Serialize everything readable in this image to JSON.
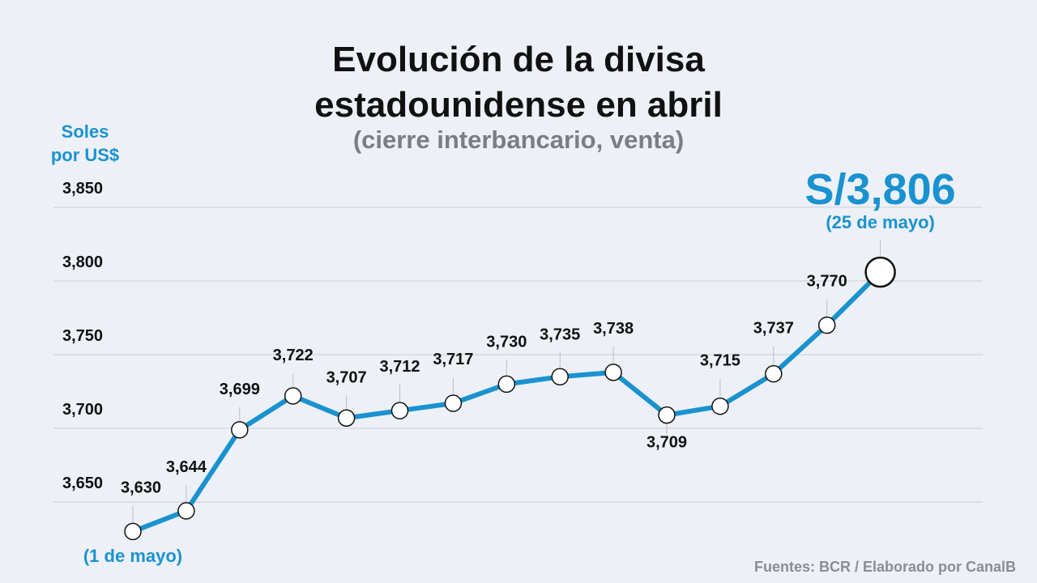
{
  "title_line1": "Evolución de la divisa",
  "title_line2": "estadounidense en abril",
  "subtitle": "(cierre interbancario, venta)",
  "ylabel_line1": "Soles",
  "ylabel_line2": "por US$",
  "source": "Fuentes: BCR / Elaborado por CanalB",
  "highlight_value": "S/3,806",
  "highlight_date": "(25 de mayo)",
  "start_date": "(1 de mayo)",
  "colors": {
    "background": "#edf1f7",
    "line": "#1a92d0",
    "accent": "#1a92d0",
    "grid": "#c9cdd4",
    "text": "#111111",
    "subtitle": "#7a7d82"
  },
  "chart_data": {
    "type": "line",
    "title": "Evolución de la divisa estadounidense en abril",
    "subtitle": "(cierre interbancario, venta)",
    "ylabel": "Soles por US$",
    "ylim": [
      3.61,
      3.86
    ],
    "yticks": [
      3.65,
      3.7,
      3.75,
      3.8,
      3.85
    ],
    "ytick_labels": [
      "3,650",
      "3,700",
      "3,750",
      "3,800",
      "3,850"
    ],
    "grid": true,
    "series": [
      {
        "values": [
          3.63,
          3.644,
          3.699,
          3.722,
          3.707,
          3.712,
          3.717,
          3.73,
          3.735,
          3.738,
          3.709,
          3.715,
          3.737,
          3.77,
          3.806
        ],
        "labels": [
          "3,630",
          "3,644",
          "3,699",
          "3,722",
          "3,707",
          "3,712",
          "3,717",
          "3,730",
          "3,735",
          "3,738",
          "3,709",
          "3,715",
          "3,737",
          "3,770",
          "S/3,806"
        ]
      }
    ]
  }
}
